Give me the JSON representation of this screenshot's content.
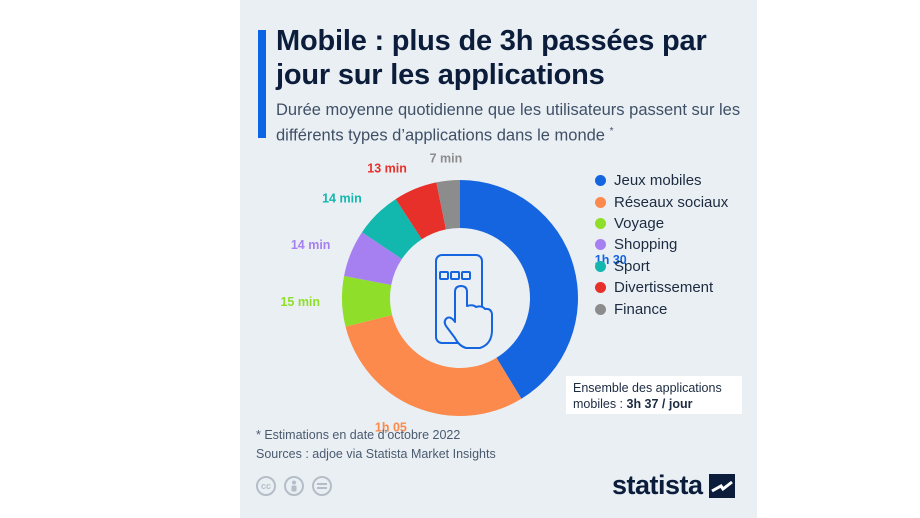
{
  "header": {
    "title": "Mobile : plus de 3h passées par jour sur les applications",
    "subtitle": "Durée moyenne quotidienne que les utilisateurs passent sur les différents types d’applications dans le monde",
    "subtitle_mark": "*"
  },
  "chart_data": {
    "type": "pie",
    "variant": "donut",
    "unit": "minutes",
    "categories": [
      "Jeux mobiles",
      "Réseaux sociaux",
      "Voyage",
      "Shopping",
      "Sport",
      "Divertissement",
      "Finance"
    ],
    "values": [
      90,
      65,
      15,
      14,
      14,
      13,
      7
    ],
    "labels": [
      "1h 30",
      "1h 05",
      "15 min",
      "14 min",
      "14 min",
      "13 min",
      "7 min"
    ],
    "colors": [
      "#1565e0",
      "#fb8a4c",
      "#8fdf2a",
      "#a680f0",
      "#12b7ae",
      "#e8302a",
      "#8c8c8c"
    ],
    "legend_position": "right"
  },
  "total": {
    "label": "Ensemble des applications mobiles : ",
    "value": "3h 37 / jour"
  },
  "footer": {
    "note": "* Estimations en date d’octobre 2022",
    "sources": "Sources : adjoe via Statista Market Insights",
    "brand": "statista"
  }
}
